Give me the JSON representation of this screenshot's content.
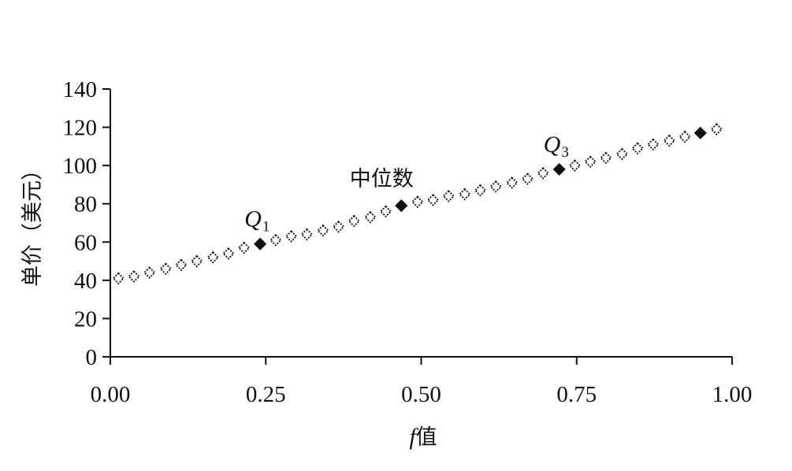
{
  "chart_data": {
    "type": "scatter",
    "xlabel_var": "f",
    "xlabel_suffix": "值",
    "ylabel": "单价（美元）",
    "xlim": [
      0,
      1
    ],
    "ylim": [
      0,
      140
    ],
    "x_ticks": [
      0,
      0.25,
      0.5,
      0.75,
      1.0
    ],
    "x_tick_labels": [
      "0.00",
      "0.25",
      "0.50",
      "0.75",
      "1.00"
    ],
    "y_ticks": [
      0,
      20,
      40,
      60,
      80,
      100,
      120,
      140
    ],
    "y_tick_labels": [
      "0",
      "20",
      "40",
      "60",
      "80",
      "100",
      "120",
      "140"
    ],
    "grid": false,
    "series": [
      {
        "style": "open-diamond",
        "points": [
          [
            0.013,
            41
          ],
          [
            0.038,
            42
          ],
          [
            0.063,
            44
          ],
          [
            0.089,
            46
          ],
          [
            0.114,
            48
          ],
          [
            0.139,
            50
          ],
          [
            0.165,
            52
          ],
          [
            0.19,
            54
          ],
          [
            0.215,
            57
          ],
          [
            0.266,
            61
          ],
          [
            0.291,
            63
          ],
          [
            0.316,
            64
          ],
          [
            0.342,
            66
          ],
          [
            0.367,
            68
          ],
          [
            0.392,
            71
          ],
          [
            0.418,
            73
          ],
          [
            0.443,
            76
          ],
          [
            0.494,
            81
          ],
          [
            0.519,
            82
          ],
          [
            0.544,
            84
          ],
          [
            0.57,
            85
          ],
          [
            0.595,
            87
          ],
          [
            0.62,
            89
          ],
          [
            0.646,
            91
          ],
          [
            0.671,
            93
          ],
          [
            0.696,
            96
          ],
          [
            0.747,
            100
          ],
          [
            0.772,
            102
          ],
          [
            0.797,
            104
          ],
          [
            0.823,
            106
          ],
          [
            0.848,
            109
          ],
          [
            0.873,
            111
          ],
          [
            0.899,
            113
          ],
          [
            0.924,
            115
          ],
          [
            0.975,
            119
          ]
        ]
      },
      {
        "style": "filled-diamond",
        "points": [
          [
            0.241,
            59
          ],
          [
            0.468,
            79
          ],
          [
            0.722,
            98
          ],
          [
            0.949,
            117
          ]
        ]
      }
    ],
    "annotations": [
      {
        "text": "Q",
        "subscript": "1",
        "x": 0.241,
        "y": 59
      },
      {
        "text": "中位数",
        "x": 0.468,
        "y": 79
      },
      {
        "text": "Q",
        "subscript": "3",
        "x": 0.722,
        "y": 98
      }
    ]
  }
}
